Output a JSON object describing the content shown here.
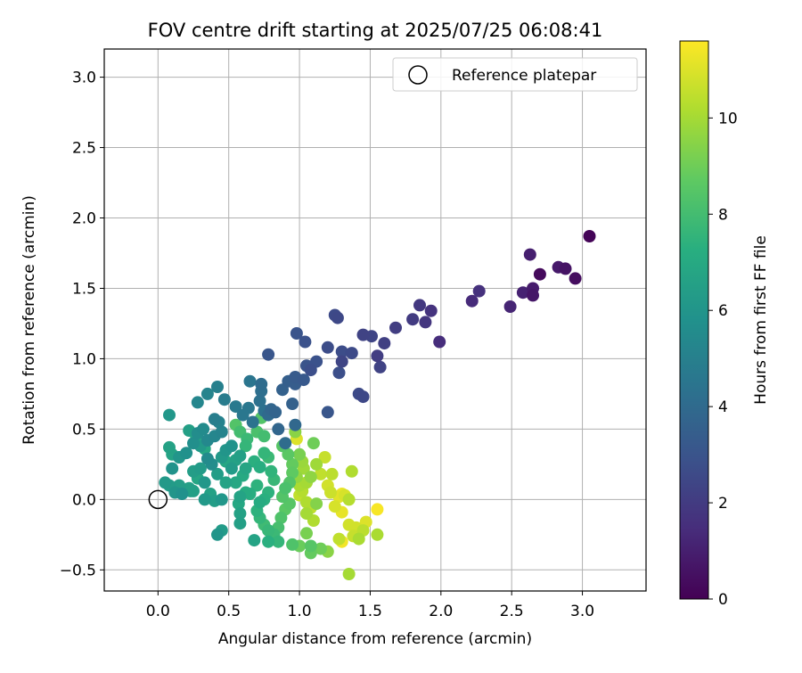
{
  "chart_data": {
    "type": "scatter",
    "title": "FOV centre drift starting at 2025/07/25 06:08:41",
    "xlabel": "Angular distance from reference (arcmin)",
    "ylabel": "Rotation from reference (arcmin)",
    "xlim": [
      -0.38,
      3.45
    ],
    "ylim": [
      -0.65,
      3.2
    ],
    "xticks": [
      "0.0",
      "0.5",
      "1.0",
      "1.5",
      "2.0",
      "2.5",
      "3.0"
    ],
    "xtick_values": [
      0,
      0.5,
      1.0,
      1.5,
      2.0,
      2.5,
      3.0
    ],
    "yticks": [
      "−0.5",
      "0.0",
      "0.5",
      "1.0",
      "1.5",
      "2.0",
      "2.5",
      "3.0"
    ],
    "ytick_values": [
      -0.5,
      0,
      0.5,
      1.0,
      1.5,
      2.0,
      2.5,
      3.0
    ],
    "grid": true,
    "legend": {
      "placement": "top-right",
      "entries": [
        "Reference platepar"
      ]
    },
    "reference_point": {
      "x": 0.0,
      "y": 0.0
    },
    "colorbar": {
      "label": "Hours from first FF file",
      "colormap": "viridis",
      "range": [
        0,
        11.6
      ],
      "ticks": [
        "0",
        "2",
        "4",
        "6",
        "8",
        "10"
      ],
      "tick_values": [
        0,
        2,
        4,
        6,
        8,
        10
      ]
    },
    "points": [
      [
        3.05,
        1.87,
        0.1
      ],
      [
        2.95,
        1.57,
        0.4
      ],
      [
        2.88,
        1.64,
        0.6
      ],
      [
        2.83,
        1.65,
        0.8
      ],
      [
        2.7,
        1.6,
        0.3
      ],
      [
        2.65,
        1.5,
        0.9
      ],
      [
        2.65,
        1.45,
        0.7
      ],
      [
        2.63,
        1.74,
        1.0
      ],
      [
        2.58,
        1.47,
        1.1
      ],
      [
        2.49,
        1.37,
        1.2
      ],
      [
        2.27,
        1.48,
        1.6
      ],
      [
        2.22,
        1.41,
        1.4
      ],
      [
        1.99,
        1.12,
        1.5
      ],
      [
        1.93,
        1.34,
        1.7
      ],
      [
        1.89,
        1.26,
        1.8
      ],
      [
        1.85,
        1.38,
        1.9
      ],
      [
        1.8,
        1.28,
        2.0
      ],
      [
        1.68,
        1.22,
        2.1
      ],
      [
        1.6,
        1.11,
        2.2
      ],
      [
        1.57,
        0.94,
        2.3
      ],
      [
        1.55,
        1.02,
        2.1
      ],
      [
        1.51,
        1.16,
        2.4
      ],
      [
        1.45,
        1.17,
        2.3
      ],
      [
        1.45,
        0.73,
        2.5
      ],
      [
        1.42,
        0.75,
        2.6
      ],
      [
        1.37,
        1.04,
        2.6
      ],
      [
        1.3,
        0.98,
        2.4
      ],
      [
        1.3,
        1.05,
        2.7
      ],
      [
        1.27,
        1.29,
        2.5
      ],
      [
        1.25,
        1.31,
        2.6
      ],
      [
        1.28,
        0.9,
        2.8
      ],
      [
        1.2,
        1.08,
        2.7
      ],
      [
        1.2,
        0.62,
        3.1
      ],
      [
        1.12,
        0.98,
        2.9
      ],
      [
        1.08,
        0.92,
        2.8
      ],
      [
        1.05,
        0.95,
        3.0
      ],
      [
        1.04,
        1.12,
        2.9
      ],
      [
        1.03,
        0.85,
        3.2
      ],
      [
        0.98,
        1.18,
        3.0
      ],
      [
        0.97,
        0.87,
        3.3
      ],
      [
        0.97,
        0.82,
        3.4
      ],
      [
        0.92,
        0.84,
        3.5
      ],
      [
        0.95,
        0.68,
        3.6
      ],
      [
        0.88,
        0.78,
        3.6
      ],
      [
        0.78,
        1.03,
        3.1
      ],
      [
        0.83,
        0.62,
        3.7
      ],
      [
        0.85,
        0.5,
        3.8
      ],
      [
        0.97,
        0.53,
        3.9
      ],
      [
        0.9,
        0.4,
        4.1
      ],
      [
        0.8,
        0.64,
        3.8
      ],
      [
        0.78,
        0.6,
        4.0
      ],
      [
        0.73,
        0.82,
        4.1
      ],
      [
        0.73,
        0.77,
        4.2
      ],
      [
        0.72,
        0.7,
        4.3
      ],
      [
        0.75,
        0.63,
        4.3
      ],
      [
        0.65,
        0.84,
        4.5
      ],
      [
        0.67,
        0.55,
        4.4
      ],
      [
        0.64,
        0.65,
        4.6
      ],
      [
        0.6,
        0.6,
        4.6
      ],
      [
        0.55,
        0.66,
        4.7
      ],
      [
        0.47,
        0.71,
        4.8
      ],
      [
        0.42,
        0.8,
        5.0
      ],
      [
        0.4,
        0.57,
        4.9
      ],
      [
        0.43,
        0.55,
        5.1
      ],
      [
        0.35,
        0.75,
        5.2
      ],
      [
        0.28,
        0.69,
        5.3
      ],
      [
        0.45,
        0.48,
        5.2
      ],
      [
        0.4,
        0.45,
        5.3
      ],
      [
        0.35,
        0.42,
        5.4
      ],
      [
        0.32,
        0.5,
        5.5
      ],
      [
        0.28,
        0.47,
        5.6
      ],
      [
        0.25,
        0.4,
        5.7
      ],
      [
        0.2,
        0.33,
        5.8
      ],
      [
        0.15,
        0.3,
        6.0
      ],
      [
        0.1,
        0.22,
        5.9
      ],
      [
        0.08,
        0.6,
        6.1
      ],
      [
        0.05,
        0.12,
        6.2
      ],
      [
        0.08,
        0.1,
        6.3
      ],
      [
        0.12,
        0.05,
        6.0
      ],
      [
        0.15,
        0.1,
        6.4
      ],
      [
        0.17,
        0.04,
        5.8
      ],
      [
        0.22,
        0.08,
        6.5
      ],
      [
        0.08,
        0.37,
        6.6
      ],
      [
        0.1,
        0.32,
        6.7
      ],
      [
        0.15,
        0.3,
        6.8
      ],
      [
        0.22,
        0.49,
        6.5
      ],
      [
        0.27,
        0.45,
        7.0
      ],
      [
        0.3,
        0.38,
        6.2
      ],
      [
        0.33,
        0.36,
        6.9
      ],
      [
        0.35,
        0.29,
        5.5
      ],
      [
        0.38,
        0.25,
        5.6
      ],
      [
        0.3,
        0.22,
        6.3
      ],
      [
        0.25,
        0.2,
        6.4
      ],
      [
        0.28,
        0.15,
        6.8
      ],
      [
        0.23,
        0.06,
        6.5
      ],
      [
        0.33,
        0.12,
        6.1
      ],
      [
        0.37,
        0.04,
        6.6
      ],
      [
        0.42,
        0.18,
        6.4
      ],
      [
        0.48,
        0.12,
        6.7
      ],
      [
        0.52,
        0.22,
        6.3
      ],
      [
        0.55,
        0.28,
        6.6
      ],
      [
        0.45,
        0.3,
        6.2
      ],
      [
        0.48,
        0.35,
        6.0
      ],
      [
        0.52,
        0.38,
        5.9
      ],
      [
        0.58,
        0.31,
        6.5
      ],
      [
        0.62,
        0.22,
        6.8
      ],
      [
        0.6,
        0.17,
        7.0
      ],
      [
        0.55,
        0.12,
        6.9
      ],
      [
        0.62,
        0.05,
        7.1
      ],
      [
        0.58,
        0.02,
        6.7
      ],
      [
        0.65,
        0.04,
        7.2
      ],
      [
        0.7,
        0.1,
        7.4
      ],
      [
        0.68,
        0.27,
        7.3
      ],
      [
        0.72,
        0.23,
        7.2
      ],
      [
        0.75,
        0.33,
        7.6
      ],
      [
        0.75,
        0.45,
        8.0
      ],
      [
        0.78,
        0.3,
        7.8
      ],
      [
        0.8,
        0.2,
        7.5
      ],
      [
        0.82,
        0.14,
        7.7
      ],
      [
        0.78,
        0.05,
        7.4
      ],
      [
        0.75,
        0.0,
        7.3
      ],
      [
        0.72,
        -0.02,
        7.1
      ],
      [
        0.7,
        -0.08,
        7.4
      ],
      [
        0.72,
        -0.13,
        7.6
      ],
      [
        0.75,
        -0.18,
        7.9
      ],
      [
        0.78,
        -0.22,
        7.7
      ],
      [
        0.82,
        -0.25,
        7.8
      ],
      [
        0.85,
        -0.2,
        8.1
      ],
      [
        0.87,
        -0.13,
        8.3
      ],
      [
        0.9,
        -0.07,
        8.6
      ],
      [
        0.93,
        -0.03,
        8.5
      ],
      [
        0.88,
        0.02,
        8.4
      ],
      [
        0.9,
        0.08,
        8.2
      ],
      [
        0.93,
        0.12,
        8.4
      ],
      [
        0.95,
        0.19,
        8.7
      ],
      [
        0.95,
        0.25,
        8.8
      ],
      [
        0.92,
        0.32,
        8.6
      ],
      [
        0.88,
        0.38,
        8.5
      ],
      [
        0.97,
        0.48,
        9.5
      ],
      [
        0.98,
        0.43,
        11.0
      ],
      [
        1.0,
        0.32,
        9.2
      ],
      [
        1.02,
        0.27,
        9.8
      ],
      [
        1.03,
        0.22,
        9.9
      ],
      [
        0.98,
        0.16,
        9.7
      ],
      [
        1.0,
        0.1,
        10.1
      ],
      [
        1.05,
        0.12,
        10.0
      ],
      [
        1.02,
        0.06,
        10.3
      ],
      [
        1.0,
        0.03,
        10.5
      ],
      [
        1.05,
        -0.02,
        10.2
      ],
      [
        1.08,
        -0.06,
        10.4
      ],
      [
        1.05,
        -0.1,
        10.0
      ],
      [
        1.1,
        -0.15,
        10.2
      ],
      [
        1.12,
        -0.03,
        9.4
      ],
      [
        1.08,
        0.16,
        9.6
      ],
      [
        1.12,
        0.25,
        9.9
      ],
      [
        1.15,
        0.18,
        10.5
      ],
      [
        1.18,
        0.3,
        10.6
      ],
      [
        1.2,
        0.1,
        10.8
      ],
      [
        1.22,
        0.05,
        10.7
      ],
      [
        1.23,
        0.18,
        10.4
      ],
      [
        1.25,
        -0.05,
        10.9
      ],
      [
        1.28,
        0.02,
        11.1
      ],
      [
        1.3,
        0.04,
        11.3
      ],
      [
        1.3,
        -0.09,
        11.2
      ],
      [
        1.32,
        0.03,
        10.9
      ],
      [
        1.28,
        -0.28,
        10.5
      ],
      [
        1.3,
        -0.3,
        11.4
      ],
      [
        1.35,
        -0.18,
        10.8
      ],
      [
        1.37,
        0.2,
        10.2
      ],
      [
        1.38,
        -0.26,
        10.6
      ],
      [
        1.4,
        -0.2,
        10.8
      ],
      [
        1.45,
        -0.22,
        10.4
      ],
      [
        1.47,
        -0.16,
        11.0
      ],
      [
        1.55,
        -0.25,
        10.1
      ],
      [
        1.55,
        -0.07,
        11.5
      ],
      [
        1.35,
        -0.53,
        10.0
      ],
      [
        1.2,
        -0.37,
        9.5
      ],
      [
        1.15,
        -0.35,
        9.0
      ],
      [
        1.08,
        -0.38,
        8.8
      ],
      [
        1.08,
        -0.33,
        8.5
      ],
      [
        1.05,
        -0.24,
        9.2
      ],
      [
        1.0,
        -0.33,
        8.9
      ],
      [
        0.95,
        -0.32,
        8.3
      ],
      [
        0.85,
        -0.3,
        7.6
      ],
      [
        0.78,
        -0.3,
        7.3
      ],
      [
        0.68,
        -0.29,
        6.7
      ],
      [
        0.58,
        -0.17,
        6.5
      ],
      [
        0.58,
        -0.1,
        6.6
      ],
      [
        0.57,
        -0.03,
        6.9
      ],
      [
        0.42,
        -0.25,
        6.0
      ],
      [
        0.45,
        -0.22,
        6.3
      ],
      [
        0.45,
        0.0,
        6.1
      ],
      [
        0.4,
        -0.01,
        6.4
      ],
      [
        0.33,
        0.0,
        6.2
      ],
      [
        0.25,
        0.06,
        6.5
      ],
      [
        0.55,
        0.53,
        8.4
      ],
      [
        0.63,
        0.43,
        7.8
      ],
      [
        0.58,
        0.48,
        8.0
      ],
      [
        0.7,
        0.48,
        8.2
      ],
      [
        0.73,
        0.58,
        8.4
      ],
      [
        1.1,
        0.4,
        9.0
      ],
      [
        0.62,
        0.38,
        7.6
      ],
      [
        0.48,
        0.27,
        6.9
      ],
      [
        1.35,
        0.0,
        10.3
      ],
      [
        1.42,
        -0.28,
        10.1
      ]
    ]
  }
}
